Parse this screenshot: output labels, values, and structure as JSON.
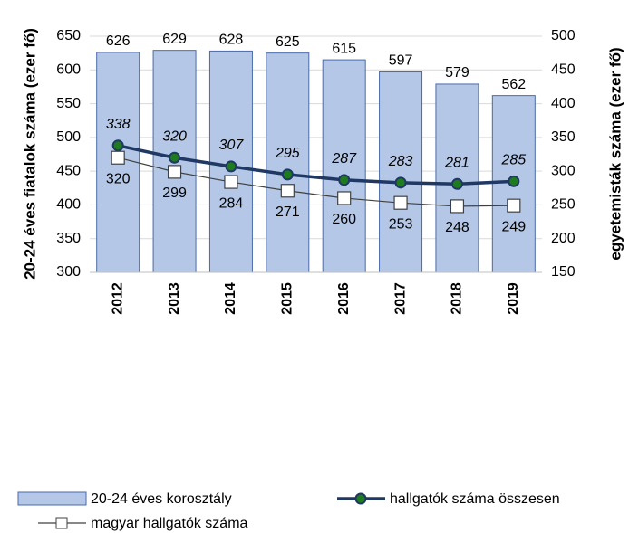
{
  "chart_data": {
    "type": "bar",
    "ylabel": "20-24 éves fiatalok száma (ezer fő)",
    "y2label": "egyetemisták száma (ezer fő)",
    "categories": [
      "2012",
      "2013",
      "2014",
      "2015",
      "2016",
      "2017",
      "2018",
      "2019"
    ],
    "ylim": [
      300,
      650
    ],
    "yticks": [
      300,
      350,
      400,
      450,
      500,
      550,
      600,
      650
    ],
    "y2lim": [
      150,
      500
    ],
    "y2ticks": [
      150,
      200,
      250,
      300,
      350,
      400,
      450,
      500
    ],
    "grid": true,
    "legend": "bottom",
    "series": [
      {
        "name": "20-24 éves korosztály",
        "type": "bar",
        "color": "#b4c7e7",
        "values": [
          626,
          629,
          628,
          625,
          615,
          597,
          579,
          562
        ]
      },
      {
        "name": "hallgatók száma összesen",
        "type": "line",
        "axis": "y2",
        "color": "#1f3864",
        "marker_color": "#1e7b1e",
        "values": [
          338,
          320,
          307,
          295,
          287,
          283,
          281,
          285
        ]
      },
      {
        "name": "magyar hallgatók száma",
        "type": "line",
        "axis": "y2",
        "color": "#404040",
        "values": [
          320,
          299,
          284,
          271,
          260,
          253,
          248,
          249
        ]
      }
    ]
  }
}
